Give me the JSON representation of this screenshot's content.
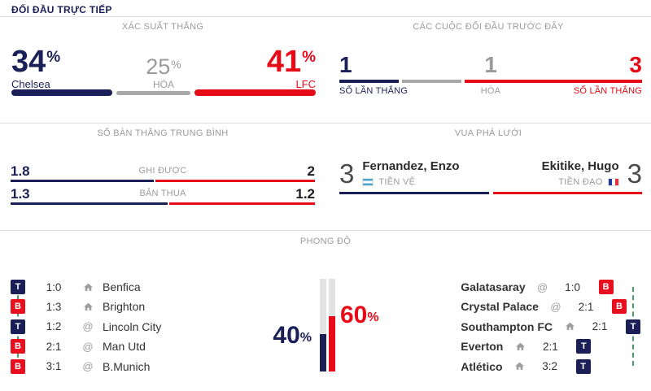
{
  "percent": "%",
  "header": {
    "title": "ĐỐI ĐẦU TRỰC TIẾP"
  },
  "win_probability": {
    "title": "XÁC SUẤT THẮNG",
    "home": {
      "value": 34,
      "label": "Chelsea"
    },
    "draw": {
      "value": 25,
      "label": "HÒA"
    },
    "away": {
      "value": 41,
      "label": "LFC"
    }
  },
  "head_to_head": {
    "title": "CÁC CUỘC ĐỐI ĐẦU TRƯỚC ĐÂY",
    "home": {
      "value": 1,
      "label": "SỐ LẦN THẮNG"
    },
    "draw": {
      "value": 1,
      "label": "HÒA"
    },
    "away": {
      "value": 3,
      "label": "SỐ LẦN THẮNG"
    }
  },
  "average_goals": {
    "title": "SỐ BÀN THẮNG TRUNG BÌNH",
    "rows": [
      {
        "label": "GHI ĐƯỢC",
        "home": "1.8",
        "away": "2"
      },
      {
        "label": "BẢN THUA",
        "home": "1.3",
        "away": "1.2"
      }
    ]
  },
  "top_scorer": {
    "title": "VUA PHÁ LƯỚI",
    "home": {
      "goals": "3",
      "name": "Fernandez, Enzo",
      "position": "TIỀN VỆ",
      "flag": "argentina"
    },
    "away": {
      "goals": "3",
      "name": "Ekitike, Hugo",
      "position": "TIỀN ĐẠO",
      "flag": "france"
    }
  },
  "form": {
    "title": "PHONG ĐỘ",
    "home_percent": 40,
    "away_percent": 60,
    "home_matches": [
      {
        "result": "T",
        "score": "1:0",
        "venue": "home",
        "opponent": "Benfica"
      },
      {
        "result": "B",
        "score": "1:3",
        "venue": "home",
        "opponent": "Brighton"
      },
      {
        "result": "T",
        "score": "1:2",
        "venue": "away",
        "opponent": "Lincoln City"
      },
      {
        "result": "B",
        "score": "2:1",
        "venue": "away",
        "opponent": "Man Utd"
      },
      {
        "result": "B",
        "score": "3:1",
        "venue": "away",
        "opponent": "B.Munich"
      }
    ],
    "away_matches": [
      {
        "result": "B",
        "score": "1:0",
        "venue": "away",
        "opponent": "Galatasaray"
      },
      {
        "result": "B",
        "score": "2:1",
        "venue": "away",
        "opponent": "Crystal Palace"
      },
      {
        "result": "T",
        "score": "2:1",
        "venue": "home",
        "opponent": "Southampton FC"
      },
      {
        "result": "T",
        "score": "2:1",
        "venue": "home",
        "opponent": "Everton"
      },
      {
        "result": "T",
        "score": "3:2",
        "venue": "home",
        "opponent": "Atlético"
      }
    ]
  },
  "icons": {
    "away_venue": "@"
  },
  "colors": {
    "navy": "#1a2057",
    "red": "#e60b17",
    "loss_red": "#e8101e",
    "gray": "#9b9b9b",
    "bar_gray": "#a8a8a8",
    "divider": "#e1e1e1",
    "green": "#44a065",
    "track": "#e2e2e2",
    "dark_text": "#333333"
  }
}
